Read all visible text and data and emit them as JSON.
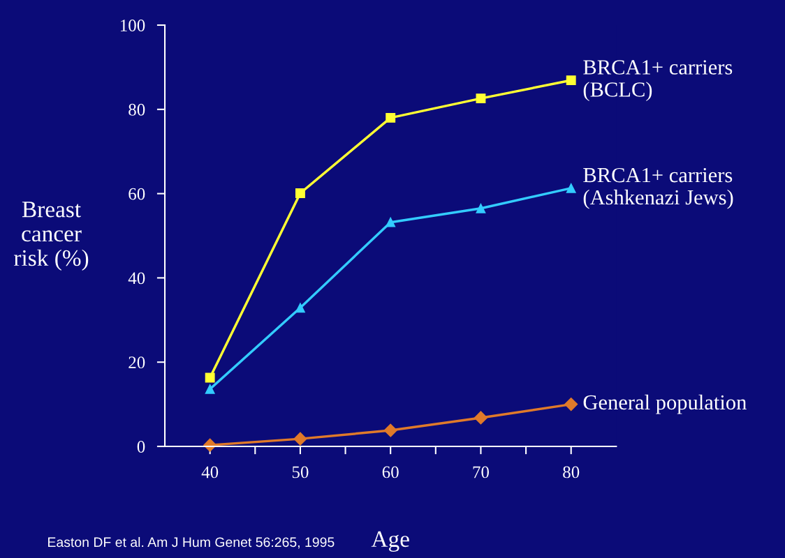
{
  "chart_data": {
    "type": "line",
    "xlabel": "Age",
    "ylabel": "Breast\ncancer\nrisk (%)",
    "x": [
      40,
      50,
      60,
      70,
      80
    ],
    "series": [
      {
        "name": "BRCA1+ carriers\n(BCLC)",
        "color": "#ffff33",
        "marker": "square",
        "values": [
          16.3,
          60.1,
          78,
          82.6,
          86.9
        ]
      },
      {
        "name": "BRCA1+ carriers\n(Ashkenazi Jews)",
        "color": "#33ccff",
        "marker": "triangle",
        "values": [
          13.6,
          32.9,
          53.2,
          56.5,
          61.3
        ]
      },
      {
        "name": "General population",
        "color": "#e07a2a",
        "marker": "diamond",
        "values": [
          0.3,
          1.8,
          3.8,
          6.8,
          10
        ]
      }
    ],
    "xlim": [
      35,
      85
    ],
    "xticks": [
      40,
      {
        "value": 45,
        "label": null
      },
      50,
      {
        "value": 55,
        "label": null
      },
      60,
      {
        "value": 65,
        "label": null
      },
      70,
      {
        "value": 75,
        "label": null
      },
      80
    ],
    "ylim": [
      0,
      100
    ],
    "yticks": [
      0,
      20,
      40,
      60,
      80,
      100
    ],
    "grid": false,
    "legend": false,
    "line_style": "solid",
    "annotations": [
      "Easton DF et al. Am J Hum Genet 56:265, 1995"
    ]
  }
}
